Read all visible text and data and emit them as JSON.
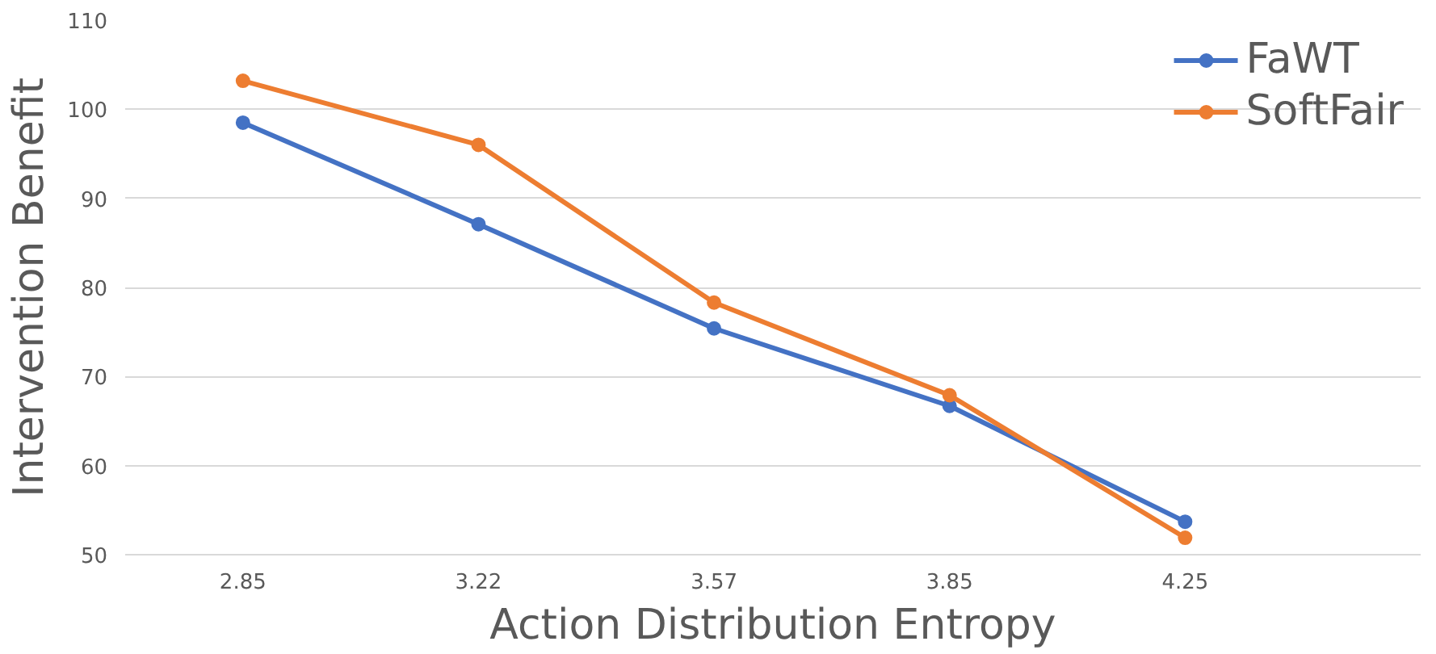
{
  "chart_data": {
    "type": "line",
    "xlabel": "Action Distribution Entropy",
    "ylabel": "Intervention Benefit",
    "categories": [
      "2.85",
      "3.22",
      "3.57",
      "3.85",
      "4.25"
    ],
    "series": [
      {
        "name": "FaWT",
        "color": "#4472c4",
        "values": [
          98.5,
          87.1,
          75.4,
          66.7,
          53.7
        ]
      },
      {
        "name": "SoftFair",
        "color": "#ed7d31",
        "values": [
          103.2,
          96.0,
          78.3,
          67.9,
          51.9
        ]
      }
    ],
    "ylim": [
      50,
      110
    ],
    "yticks": [
      50,
      60,
      70,
      80,
      90,
      100,
      110
    ],
    "grid": "y",
    "legend": "top right",
    "marker": "circle",
    "line_style": "solid"
  }
}
